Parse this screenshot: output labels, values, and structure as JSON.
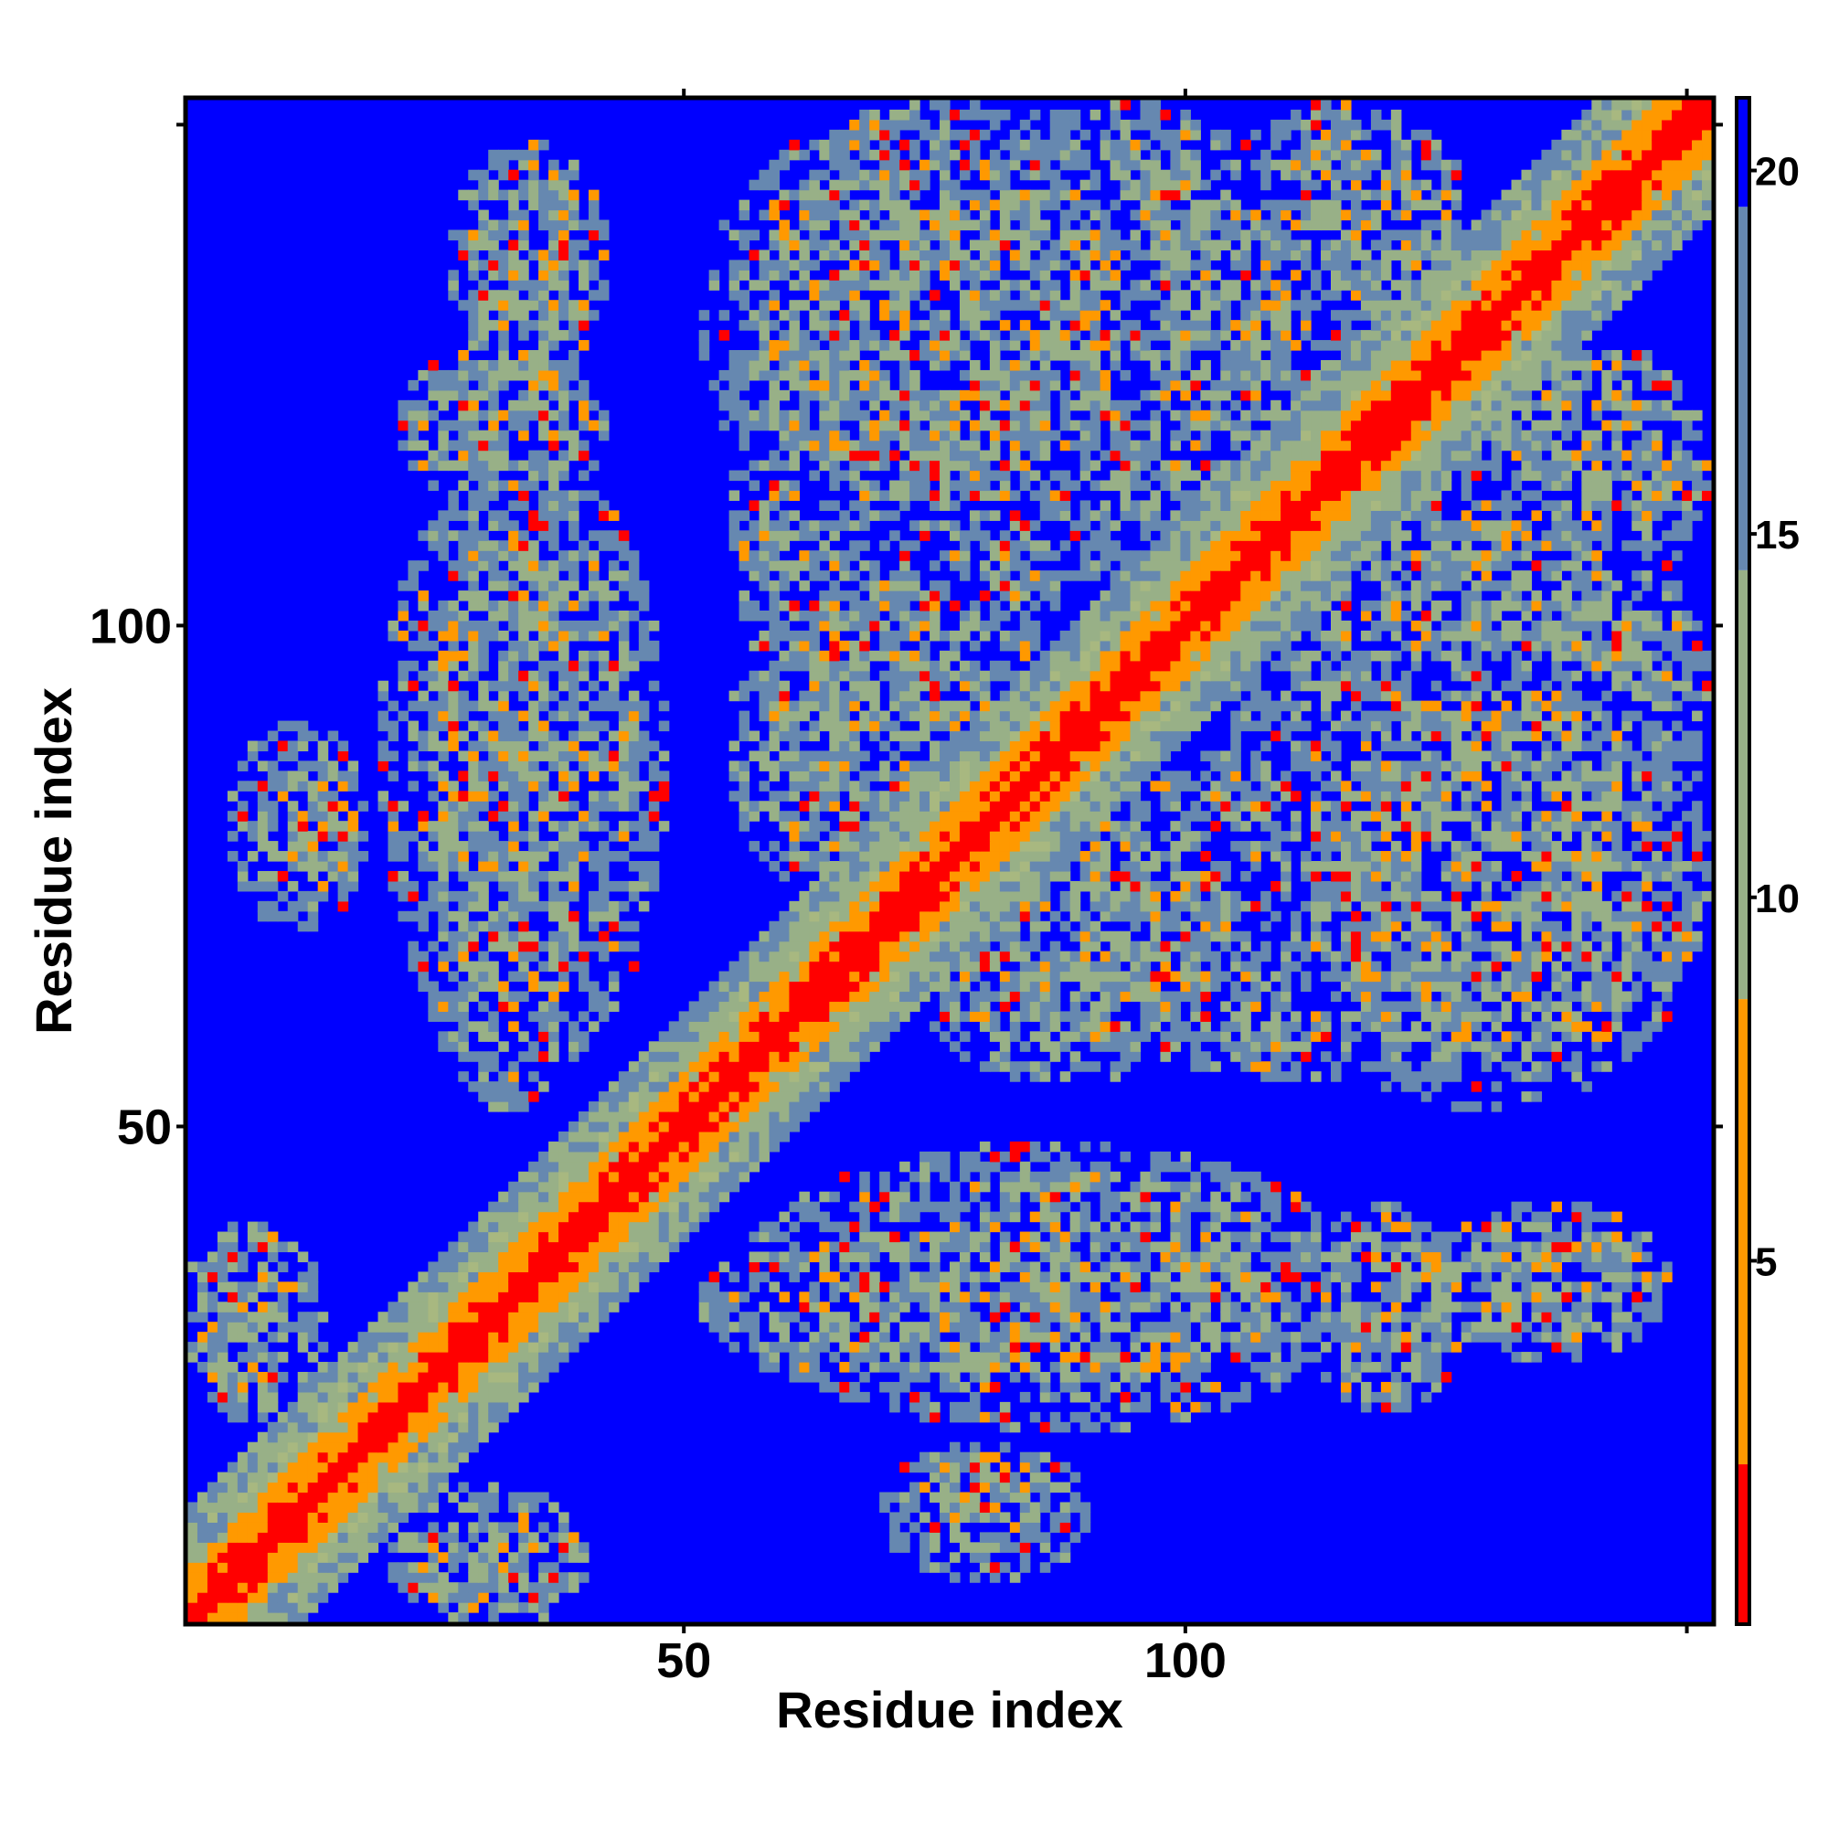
{
  "chart_data": {
    "type": "heatmap",
    "title": "",
    "xlabel": "Residue index",
    "ylabel": "Residue index",
    "n_residues": 152,
    "xlim": [
      1,
      152
    ],
    "ylim": [
      1,
      152
    ],
    "x_ticks": [
      50,
      100
    ],
    "y_ticks": [
      50,
      100
    ],
    "grid": false,
    "colorbar": {
      "position": "right",
      "ticks": [
        5,
        10,
        15,
        20
      ],
      "range": [
        0,
        21
      ],
      "colors": {
        "very_close": "#ff0000",
        "close": "#ff9900",
        "mid": "#98b087",
        "far": "#6688b0",
        "none": "#0000ff"
      }
    },
    "contact_blocks": [
      {
        "x": [
          1,
          13
        ],
        "y": [
          27,
          40
        ]
      },
      {
        "x": [
          20,
          39
        ],
        "y": [
          1,
          14
        ]
      },
      {
        "x": [
          22,
          42
        ],
        "y": [
          112,
          128
        ]
      },
      {
        "x": [
          22,
          43
        ],
        "y": [
          52,
          115
        ]
      },
      {
        "x": [
          5,
          18
        ],
        "y": [
          72,
          88
        ]
      },
      {
        "x": [
          52,
          98
        ],
        "y": [
          108,
          152
        ]
      },
      {
        "x": [
          55,
          86
        ],
        "y": [
          68,
          108
        ]
      },
      {
        "x": [
          55,
          118
        ],
        "y": [
          20,
          48
        ]
      },
      {
        "x": [
          70,
          90
        ],
        "y": [
          5,
          18
        ]
      },
      {
        "x": [
          88,
          132
        ],
        "y": [
          55,
          88
        ]
      },
      {
        "x": [
          105,
          152
        ],
        "y": [
          70,
          115
        ]
      },
      {
        "x": [
          118,
          152
        ],
        "y": [
          100,
          130
        ]
      },
      {
        "x": [
          125,
          148
        ],
        "y": [
          27,
          42
        ]
      }
    ]
  }
}
